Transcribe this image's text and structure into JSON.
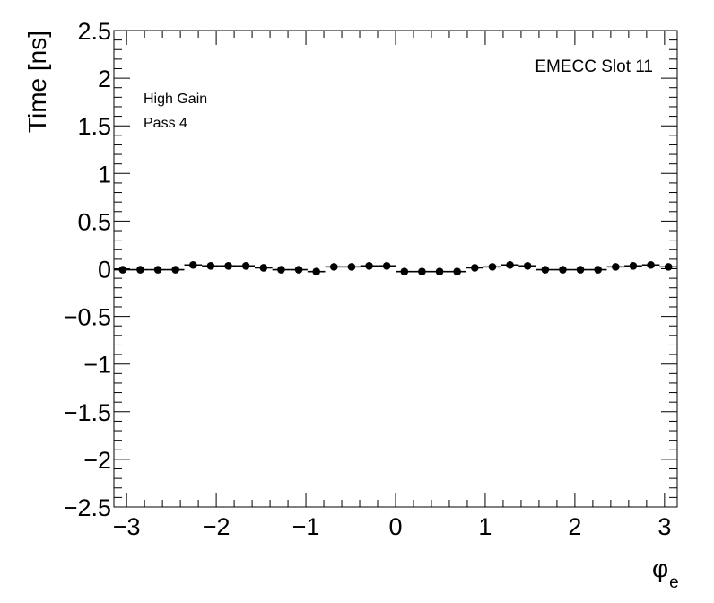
{
  "chart_data": {
    "type": "scatter",
    "annotations": {
      "top_right": "EMECC Slot 11",
      "line1": "High Gain",
      "line2": "Pass 4"
    },
    "ylabel": "Time [ns]",
    "xlabel_main": "φ",
    "xlabel_sub": "e",
    "xlim": [
      -3.1416,
      3.1416
    ],
    "ylim": [
      -2.5,
      2.5
    ],
    "x_ticks": [
      {
        "v": -3,
        "t": "−3"
      },
      {
        "v": -2,
        "t": "−2"
      },
      {
        "v": -1,
        "t": "−1"
      },
      {
        "v": 0,
        "t": "0"
      },
      {
        "v": 1,
        "t": "1"
      },
      {
        "v": 2,
        "t": "2"
      },
      {
        "v": 3,
        "t": "3"
      }
    ],
    "y_ticks": [
      {
        "v": -2.5,
        "t": "−2.5"
      },
      {
        "v": -2,
        "t": "−2"
      },
      {
        "v": -1.5,
        "t": "−1.5"
      },
      {
        "v": -1,
        "t": "−1"
      },
      {
        "v": -0.5,
        "t": "−0.5"
      },
      {
        "v": 0,
        "t": "0"
      },
      {
        "v": 0.5,
        "t": "0.5"
      },
      {
        "v": 1,
        "t": "1"
      },
      {
        "v": 1.5,
        "t": "1.5"
      },
      {
        "v": 2,
        "t": "2"
      },
      {
        "v": 2.5,
        "t": "2.5"
      }
    ],
    "series": [
      {
        "bin_width": 0.19635,
        "x": [
          -3.0434,
          -2.8471,
          -2.6507,
          -2.4544,
          -2.258,
          -2.0617,
          -1.8653,
          -1.669,
          -1.4726,
          -1.2763,
          -1.0799,
          -0.8836,
          -0.6872,
          -0.4909,
          -0.2945,
          -0.0982,
          0.0982,
          0.2945,
          0.4909,
          0.6872,
          0.8836,
          1.0799,
          1.2763,
          1.4726,
          1.669,
          1.8653,
          2.0617,
          2.258,
          2.4544,
          2.6507,
          2.8471,
          3.0434
        ],
        "y": [
          -0.01,
          -0.01,
          -0.01,
          -0.01,
          0.04,
          0.03,
          0.03,
          0.03,
          0.01,
          -0.01,
          -0.01,
          -0.03,
          0.02,
          0.02,
          0.03,
          0.03,
          -0.03,
          -0.03,
          -0.03,
          -0.03,
          0.01,
          0.02,
          0.04,
          0.03,
          -0.01,
          -0.01,
          -0.01,
          -0.01,
          0.02,
          0.03,
          0.04,
          0.02
        ]
      }
    ]
  }
}
